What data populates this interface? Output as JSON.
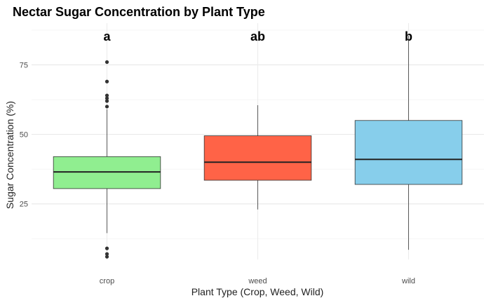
{
  "chart_data": {
    "type": "box",
    "title": "Nectar Sugar Concentration by Plant Type",
    "xlabel": "Plant Type (Crop, Weed, Wild)",
    "ylabel": "Sugar Concentration (%)",
    "categories": [
      "crop",
      "weed",
      "wild"
    ],
    "ylim": [
      5,
      90
    ],
    "yticks": [
      25,
      50,
      75
    ],
    "grid": true,
    "boxes": [
      {
        "category": "crop",
        "min": 14.5,
        "q1": 30.5,
        "median": 36.5,
        "q3": 42,
        "max": 59,
        "outliers": [
          60,
          62,
          63,
          64,
          69,
          76,
          6,
          7,
          9
        ],
        "letter": "a",
        "color": "#90EE90"
      },
      {
        "category": "weed",
        "min": 23,
        "q1": 33.5,
        "median": 40,
        "q3": 49.5,
        "max": 60.5,
        "outliers": [],
        "letter": "ab",
        "color": "#FF6347"
      },
      {
        "category": "wild",
        "min": 8.5,
        "q1": 32,
        "median": 41,
        "q3": 55,
        "max": 85.5,
        "outliers": [],
        "letter": "b",
        "color": "#87CEEB"
      }
    ]
  }
}
